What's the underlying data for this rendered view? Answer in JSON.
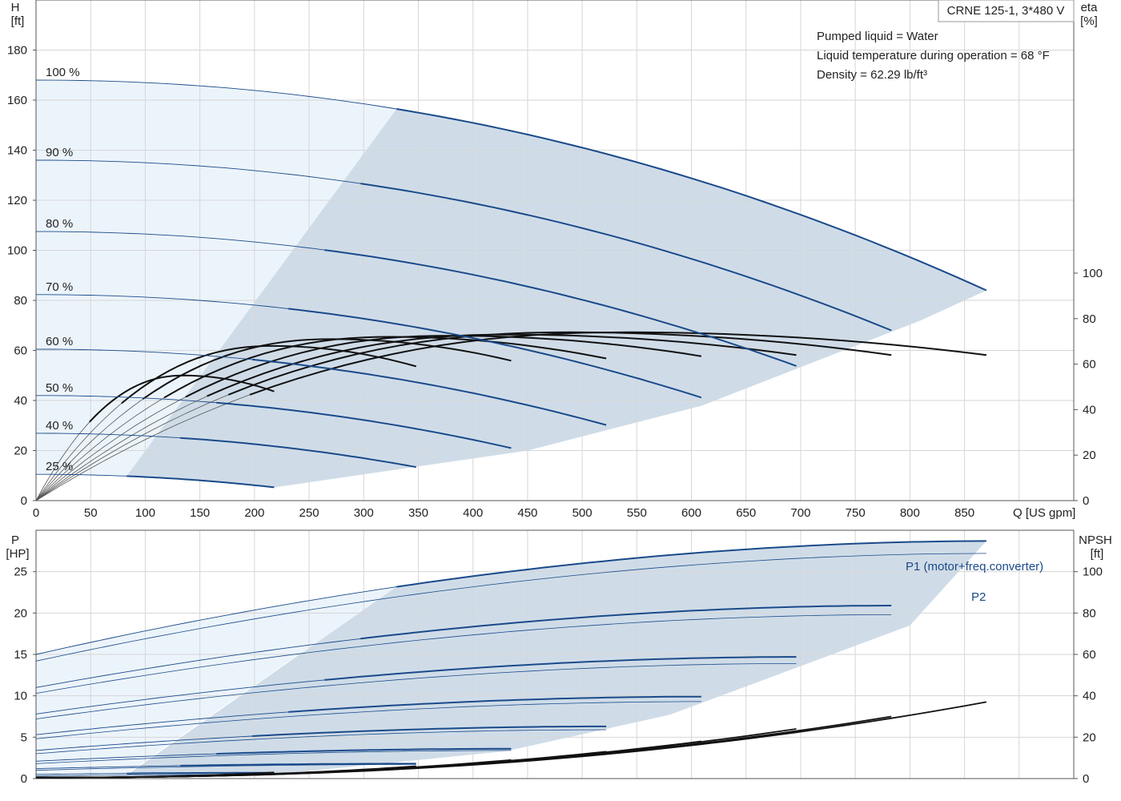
{
  "title": "CRNE 125-1, 3*480 V",
  "info": {
    "pumped_liquid": "Pumped liquid = Water",
    "liquid_temperature": "Liquid temperature during operation = 68 °F",
    "density": "Density = 62.29 lb/ft³"
  },
  "labels": {
    "h_axis": "H",
    "h_unit": "[ft]",
    "eta_axis": "eta",
    "eta_unit": "[%]",
    "q_axis": "Q [US gpm]",
    "p_axis": "P",
    "p_unit": "[HP]",
    "npsh_axis": "NPSH",
    "npsh_unit": "[ft]",
    "p1": "P1 (motor+freq.converter)",
    "p2": "P2"
  },
  "colors": {
    "curve_blue": "#1a4a8a",
    "region_dark": "#cfdce8",
    "region_light": "#ecf4fb",
    "grid": "#d6d6d6",
    "eta_black": "#111111"
  },
  "chart_data": [
    {
      "type": "line",
      "title": "CRNE 125-1, 3*480 V",
      "xlabel": "Q [US gpm]",
      "ylabel": "H [ft]",
      "y2label": "eta [%]",
      "xlim": [
        0,
        950
      ],
      "ylim": [
        0,
        200
      ],
      "y2lim": [
        0,
        100
      ],
      "x_ticks": [
        0,
        50,
        100,
        150,
        200,
        250,
        300,
        350,
        400,
        450,
        500,
        550,
        600,
        650,
        700,
        750,
        800,
        850
      ],
      "y_ticks": [
        0,
        20,
        40,
        60,
        80,
        100,
        120,
        140,
        160,
        180
      ],
      "y2_ticks": [
        0,
        20,
        40,
        60,
        80,
        100
      ],
      "grid": true,
      "head_curves": [
        {
          "speed": "100 %",
          "shut_off": 168,
          "q_max": 870,
          "h_end": 84,
          "q_start": 330
        },
        {
          "speed": "90 %",
          "shut_off": 136,
          "q_max": 783,
          "h_end": 68,
          "q_start": 297
        },
        {
          "speed": "80 %",
          "shut_off": 107.5,
          "q_max": 696,
          "h_end": 53.8,
          "q_start": 264
        },
        {
          "speed": "70 %",
          "shut_off": 82.3,
          "q_max": 609,
          "h_end": 41.2,
          "q_start": 231
        },
        {
          "speed": "60 %",
          "shut_off": 60.5,
          "q_max": 522,
          "h_end": 30.2,
          "q_start": 198
        },
        {
          "speed": "50 %",
          "shut_off": 42,
          "q_max": 435,
          "h_end": 21,
          "q_start": 165
        },
        {
          "speed": "40 %",
          "shut_off": 26.9,
          "q_max": 348,
          "h_end": 13.4,
          "q_start": 132
        },
        {
          "speed": "25 %",
          "shut_off": 10.5,
          "q_max": 218,
          "h_end": 5.3,
          "q_start": 83
        }
      ],
      "eta_curves": [
        {
          "q_end": 870,
          "eta_peak": 74,
          "eta_end": 64
        },
        {
          "q_end": 783,
          "eta_peak": 74,
          "eta_end": 64
        },
        {
          "q_end": 696,
          "eta_peak": 73,
          "eta_end": 64
        },
        {
          "q_end": 609,
          "eta_peak": 72.5,
          "eta_end": 63.5
        },
        {
          "q_end": 522,
          "eta_peak": 72,
          "eta_end": 62.5
        },
        {
          "q_end": 435,
          "eta_peak": 71,
          "eta_end": 61.5
        },
        {
          "q_end": 348,
          "eta_peak": 68,
          "eta_end": 59
        },
        {
          "q_end": 218,
          "eta_peak": 55,
          "eta_end": 48
        }
      ]
    },
    {
      "type": "line",
      "xlabel": "Q [US gpm]",
      "ylabel": "P [HP]",
      "y2label": "NPSH [ft]",
      "xlim": [
        0,
        950
      ],
      "ylim": [
        0,
        30
      ],
      "y2lim": [
        0,
        120
      ],
      "y_ticks": [
        0,
        5,
        10,
        15,
        20,
        25
      ],
      "y2_ticks": [
        0,
        20,
        40,
        60,
        80,
        100
      ],
      "grid": true,
      "power_curves": [
        {
          "speed": "100 %",
          "q_max": 870,
          "p1_start": 15,
          "p1_end": 28.7,
          "p2_start": 14.2,
          "p2_end": 27.2,
          "q_start": 330
        },
        {
          "speed": "90 %",
          "q_max": 783,
          "p1_start": 11,
          "p1_end": 20.9,
          "p2_start": 10.3,
          "p2_end": 19.8,
          "q_start": 297
        },
        {
          "speed": "80 %",
          "q_max": 696,
          "p1_start": 7.8,
          "p1_end": 14.7,
          "p2_start": 7.2,
          "p2_end": 13.9,
          "q_start": 264
        },
        {
          "speed": "70 %",
          "q_max": 609,
          "p1_start": 5.3,
          "p1_end": 9.9,
          "p2_start": 4.8,
          "p2_end": 9.3,
          "q_start": 231
        },
        {
          "speed": "60 %",
          "q_max": 522,
          "p1_start": 3.4,
          "p1_end": 6.3,
          "p2_start": 3.0,
          "p2_end": 5.9,
          "q_start": 198
        },
        {
          "speed": "50 %",
          "q_max": 435,
          "p1_start": 2.1,
          "p1_end": 3.6,
          "p2_start": 1.8,
          "p2_end": 3.4,
          "q_start": 165
        },
        {
          "speed": "40 %",
          "q_max": 348,
          "p1_start": 1.2,
          "p1_end": 1.8,
          "p2_start": 1.0,
          "p2_end": 1.7,
          "q_start": 132
        },
        {
          "speed": "25 %",
          "q_max": 218,
          "p1_start": 0.5,
          "p1_end": 0.7,
          "p2_start": 0.3,
          "p2_end": 0.5,
          "q_start": 83
        }
      ],
      "npsh_curves": [
        {
          "q_max": 870,
          "npsh_end": 37
        },
        {
          "q_max": 783,
          "npsh_end": 30
        },
        {
          "q_max": 696,
          "npsh_end": 24
        },
        {
          "q_max": 609,
          "npsh_end": 18
        },
        {
          "q_max": 522,
          "npsh_end": 13
        },
        {
          "q_max": 435,
          "npsh_end": 9
        },
        {
          "q_max": 348,
          "npsh_end": 6
        },
        {
          "q_max": 218,
          "npsh_end": 3
        }
      ]
    }
  ]
}
